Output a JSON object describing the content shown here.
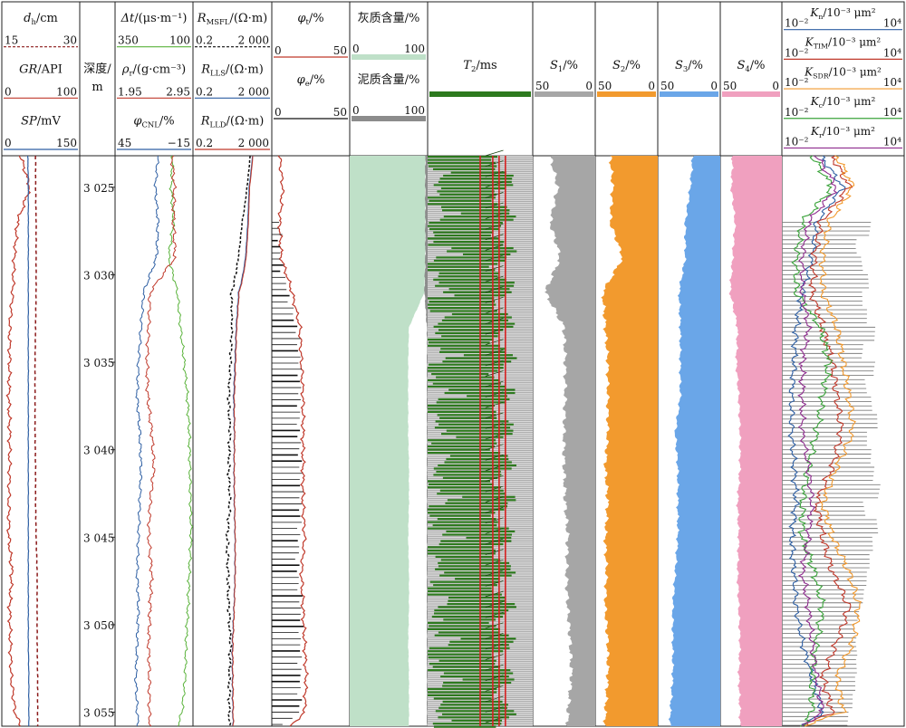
{
  "chart_data": {
    "type": "well-log",
    "depth": {
      "label_line1": "深度/",
      "label_line2": "m",
      "range": [
        3023.2,
        3055.8
      ],
      "ticks": [
        3025,
        3030,
        3035,
        3040,
        3045,
        3050,
        3055
      ],
      "tick_labels": [
        "3 025",
        "3 030",
        "3 035",
        "3 040",
        "3 045",
        "3 050",
        "3 055"
      ]
    },
    "tracks": [
      {
        "id": "t1",
        "headers": [
          {
            "label": "dh/cm",
            "min": "15",
            "max": "30",
            "color": "#8b1a1a",
            "dashed": true
          },
          {
            "label": "GR/API",
            "min": "0",
            "max": "100",
            "color": "#c0392b"
          },
          {
            "label": "SP/mV",
            "min": "0",
            "max": "150",
            "color": "#2e5fa3"
          }
        ]
      },
      {
        "id": "t2",
        "headers": [
          {
            "label": "Δt/(μs·m⁻¹)",
            "min": "350",
            "max": "100",
            "color": "#5ab33b"
          },
          {
            "label": "ρr/(g·cm⁻³)",
            "min": "1.95",
            "max": "2.95",
            "color": "#c0392b"
          },
          {
            "label": "φCNL/%",
            "min": "45",
            "max": "−15",
            "color": "#2e5fa3"
          }
        ]
      },
      {
        "id": "t3",
        "headers": [
          {
            "label": "RMSFL/(Ω·m)",
            "min": "0.2",
            "max": "2 000",
            "color": "#111111",
            "dashed": true
          },
          {
            "label": "RLLS/(Ω·m)",
            "min": "0.2",
            "max": "2 000",
            "color": "#2e5fa3"
          },
          {
            "label": "RLLD/(Ω·m)",
            "min": "0.2",
            "max": "2 000",
            "color": "#c0392b"
          }
        ]
      },
      {
        "id": "t4",
        "headers": [
          {
            "label": "φt/%",
            "min": "0",
            "max": "50",
            "color": "#c0392b"
          },
          {
            "label": "φe/%",
            "min": "0",
            "max": "50",
            "color": "#111111"
          }
        ]
      },
      {
        "id": "t5",
        "headers": [
          {
            "label": "灰质含量/%",
            "min": "0",
            "max": "100",
            "color": "#bfe0c8"
          },
          {
            "label": "泥质含量/%",
            "min": "0",
            "max": "100",
            "color": "#8c8c8c"
          }
        ]
      },
      {
        "id": "t6",
        "headers": [
          {
            "label": "T2/ms",
            "color": "#2d7a1e"
          }
        ]
      },
      {
        "id": "t7",
        "headers": [
          {
            "label": "S1/%",
            "min": "50",
            "max": "0",
            "color": "#a6a6a6"
          }
        ]
      },
      {
        "id": "t8",
        "headers": [
          {
            "label": "S2/%",
            "min": "50",
            "max": "0",
            "color": "#f29a2e"
          }
        ]
      },
      {
        "id": "t9",
        "headers": [
          {
            "label": "S3/%",
            "min": "50",
            "max": "0",
            "color": "#6aa6e8"
          }
        ]
      },
      {
        "id": "t10",
        "headers": [
          {
            "label": "S4/%",
            "min": "50",
            "max": "0",
            "color": "#f0a0bf"
          }
        ]
      },
      {
        "id": "t11",
        "headers": [
          {
            "label": "Kn/10⁻³ μm²",
            "min": "10⁻²",
            "max": "10⁴",
            "color": "#2e5fa3"
          },
          {
            "label": "KTIM/10⁻³ μm²",
            "min": "10⁻²",
            "max": "10⁴",
            "color": "#c0392b"
          },
          {
            "label": "KSDR/10⁻³ μm²",
            "min": "10⁻²",
            "max": "10⁴",
            "color": "#f29a2e"
          },
          {
            "label": "Kc/10⁻³ μm²",
            "min": "10⁻²",
            "max": "10⁴",
            "color": "#3aa33a"
          },
          {
            "label": "Kr/10⁻³ μm²",
            "min": "10⁻²",
            "max": "10⁴",
            "color": "#8e2c8e"
          }
        ]
      }
    ],
    "curves": {
      "depth": [
        3023.2,
        3025,
        3027,
        3029,
        3031,
        3033,
        3035,
        3037,
        3039,
        3041,
        3043,
        3045,
        3047,
        3049,
        3051,
        3053,
        3055,
        3055.8
      ],
      "dh": [
        21.5,
        21.5,
        21.6,
        21.6,
        21.6,
        21.5,
        21.4,
        21.4,
        21.4,
        21.5,
        21.5,
        21.6,
        21.8,
        21.8,
        21.8,
        21.9,
        21.9,
        21.9
      ],
      "GR": [
        24,
        36,
        20,
        16,
        14,
        10,
        10,
        9,
        10,
        10,
        9,
        9,
        13,
        10,
        11,
        12,
        17,
        24
      ],
      "SP": [
        50,
        51,
        51,
        51,
        51,
        51,
        51,
        51,
        51,
        51,
        51,
        51,
        51,
        51,
        51,
        52,
        52,
        52
      ],
      "DT": [
        165,
        170,
        162,
        178,
        150,
        140,
        128,
        118,
        112,
        110,
        108,
        106,
        112,
        116,
        122,
        125,
        135,
        150
      ],
      "RHOB": [
        2.68,
        2.71,
        2.7,
        2.72,
        2.4,
        2.38,
        2.36,
        2.37,
        2.42,
        2.45,
        2.4,
        2.38,
        2.42,
        2.4,
        2.38,
        2.39,
        2.39,
        2.4
      ],
      "CNL": [
        12,
        14,
        12,
        13,
        23,
        25,
        27,
        28,
        26,
        25,
        26,
        27,
        28,
        27,
        28,
        29,
        28,
        27
      ],
      "RMSFL": [
        160,
        110,
        62,
        40,
        18,
        19,
        16,
        13,
        15,
        13,
        15,
        11,
        12,
        13,
        16,
        14,
        14,
        14
      ],
      "RLLS": [
        210,
        140,
        120,
        92,
        41,
        31,
        27,
        23,
        25,
        24,
        25,
        27,
        27,
        24,
        20,
        20,
        21,
        21
      ],
      "RLLD": [
        220,
        150,
        130,
        100,
        44,
        33,
        29,
        25,
        26,
        25,
        26,
        28,
        28,
        25,
        21,
        21,
        22,
        22
      ],
      "PHIT": [
        5,
        7,
        5,
        6,
        13,
        18,
        19,
        20,
        20,
        20,
        20,
        21,
        19,
        20,
        21,
        22,
        21,
        12
      ],
      "PHIE": [
        0,
        3,
        4,
        5,
        11,
        16,
        17,
        18,
        18,
        18,
        18,
        18,
        17,
        18,
        18,
        19,
        18,
        6
      ],
      "LIME": [
        97,
        97,
        97,
        97,
        96,
        76,
        75,
        75,
        75,
        76,
        76,
        75,
        76,
        76,
        75,
        76,
        76,
        76
      ],
      "SHALE": [
        3,
        3,
        3,
        3,
        4,
        1,
        0,
        0,
        0,
        0,
        0,
        0,
        0,
        0,
        0,
        0,
        0,
        0
      ],
      "S1": [
        36,
        30,
        36,
        28,
        40,
        25,
        24,
        24,
        25,
        25,
        24,
        22,
        23,
        22,
        20,
        19,
        22,
        22
      ],
      "S2": [
        38,
        36,
        38,
        28,
        44,
        42,
        40,
        40,
        40,
        42,
        40,
        42,
        41,
        42,
        40,
        40,
        42,
        42
      ],
      "S3": [
        22,
        24,
        28,
        28,
        33,
        32,
        32,
        32,
        36,
        34,
        34,
        34,
        36,
        38,
        38,
        38,
        40,
        40
      ],
      "S4": [
        40,
        41,
        38,
        40,
        42,
        36,
        37,
        35,
        34,
        34,
        36,
        35,
        36,
        35,
        34,
        35,
        34,
        34
      ],
      "Kn": [
        0.8,
        10,
        0.5,
        0.3,
        0.1,
        0.05,
        0.04,
        0.03,
        0.03,
        0.04,
        0.05,
        0.03,
        0.04,
        0.05,
        0.1,
        0.3,
        1,
        0.1
      ],
      "KTIM": [
        3,
        20,
        0.8,
        0.4,
        0.3,
        1,
        3,
        5,
        8,
        3,
        0.5,
        1,
        3,
        20,
        5,
        1,
        3,
        0.1
      ],
      "KSDR": [
        5,
        30,
        2,
        1,
        1,
        5,
        10,
        20,
        30,
        5,
        1,
        3,
        20,
        60,
        30,
        5,
        10,
        0.1
      ],
      "Kc": [
        0.3,
        3,
        0.1,
        0.05,
        0.05,
        0.8,
        2,
        1,
        0.5,
        0.2,
        0.1,
        0.1,
        0.4,
        1,
        0.5,
        0.3,
        0.3,
        0.1
      ],
      "Kr": [
        0.5,
        5,
        0.2,
        0.1,
        0.1,
        0.2,
        0.1,
        0.1,
        0.1,
        0.2,
        0.3,
        0.2,
        0.1,
        0.2,
        0.3,
        0.5,
        1,
        0.1
      ]
    },
    "kr_core_depths": [
      3027,
      3028,
      3029,
      3030,
      3031,
      3032,
      3033,
      3034,
      3035,
      3036,
      3037,
      3038,
      3039,
      3040,
      3041,
      3042,
      3043,
      3044,
      3045,
      3046,
      3047,
      3048,
      3049,
      3050,
      3051,
      3052,
      3053,
      3054,
      3055
    ],
    "kr_core_values": [
      300,
      80,
      120,
      200,
      90,
      150,
      400,
      120,
      600,
      200,
      300,
      500,
      150,
      250,
      400,
      1000,
      180,
      600,
      300,
      200,
      150,
      120,
      90,
      70,
      60,
      50,
      40,
      30,
      20
    ]
  }
}
